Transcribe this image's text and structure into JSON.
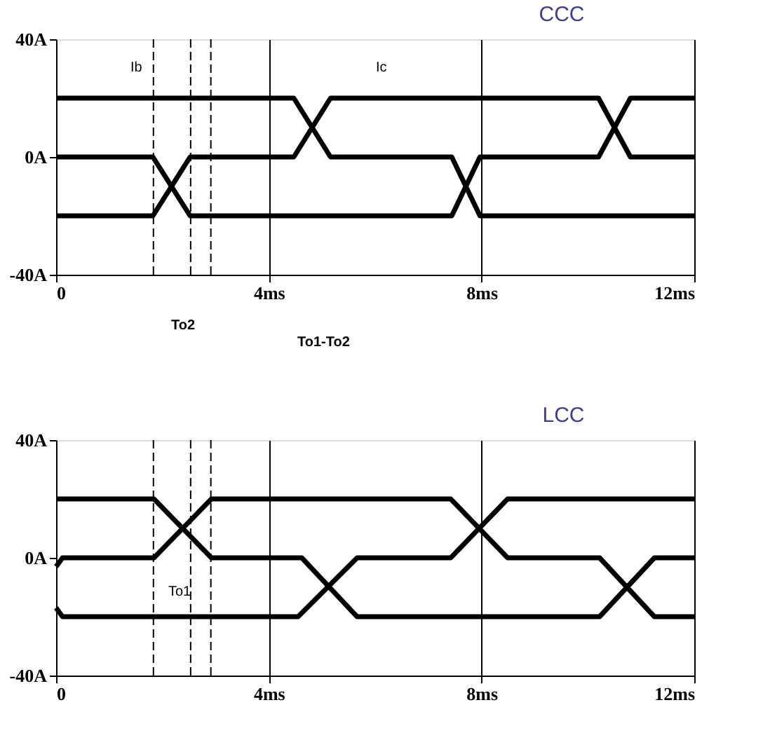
{
  "chart_data": [
    {
      "type": "line",
      "title": "CCC",
      "xlim": [
        0,
        12
      ],
      "ylim": [
        -40,
        40
      ],
      "xticks": [
        0,
        {
          "value": 4,
          "label": "4ms"
        },
        {
          "value": 8,
          "label": "8ms"
        },
        {
          "value": 12,
          "label": "12ms"
        }
      ],
      "yticks": [
        {
          "value": -40,
          "label": "-40A"
        },
        {
          "value": 0,
          "label": "0A"
        },
        {
          "value": 40,
          "label": "40A"
        }
      ],
      "grid": "x",
      "line_style": "solid",
      "series": [
        {
          "color": "#000000",
          "x": [
            0,
            4.47,
            5.16,
            7.44,
            7.97,
            12
          ],
          "values": [
            20,
            20,
            0,
            0,
            -20,
            -20
          ]
        },
        {
          "color": "#000000",
          "x": [
            0,
            1.82,
            2.52,
            7.44,
            7.97,
            10.2,
            10.8,
            12
          ],
          "values": [
            0,
            0,
            -20,
            -20,
            0,
            0,
            20,
            20
          ]
        },
        {
          "color": "#000000",
          "x": [
            0,
            1.82,
            2.52,
            4.47,
            5.16,
            10.2,
            10.8,
            12
          ],
          "values": [
            -20,
            -20,
            0,
            0,
            20,
            20,
            0,
            0
          ]
        }
      ],
      "ref_lines": [
        {
          "axis": "x",
          "value": 1.83,
          "line_style": "dashed",
          "color": "#000000"
        },
        {
          "axis": "x",
          "value": 2.53,
          "line_style": "dashed",
          "color": "#000000"
        },
        {
          "axis": "x",
          "value": 2.91,
          "line_style": "dashed",
          "color": "#000000"
        }
      ],
      "annotations": [
        "Ib",
        "Ic",
        "To2",
        "To1-To2"
      ]
    },
    {
      "type": "line",
      "title": "LCC",
      "xlim": [
        0,
        12
      ],
      "ylim": [
        -40,
        40
      ],
      "xticks": [
        0,
        {
          "value": 4,
          "label": "4ms"
        },
        {
          "value": 8,
          "label": "8ms"
        },
        {
          "value": 12,
          "label": "12ms"
        }
      ],
      "yticks": [
        {
          "value": -40,
          "label": "-40A"
        },
        {
          "value": 0,
          "label": "0A"
        },
        {
          "value": 40,
          "label": "40A"
        }
      ],
      "grid": "x",
      "line_style": "solid",
      "series": [
        {
          "color": "#000000",
          "x": [
            0,
            1.84,
            2.92,
            4.62,
            5.66,
            10.22,
            11.25,
            12
          ],
          "values": [
            20,
            20,
            0,
            0,
            -20,
            -20,
            0,
            0
          ]
        },
        {
          "color": "#000000",
          "x": [
            0,
            0.12,
            1.84,
            2.92,
            7.42,
            8.49,
            10.22,
            11.25,
            12
          ],
          "values": [
            -3,
            0,
            0,
            20,
            20,
            0,
            0,
            -20,
            -20
          ]
        },
        {
          "color": "#000000",
          "x": [
            0,
            0.12,
            4.55,
            5.66,
            7.42,
            8.49,
            12
          ],
          "values": [
            -17,
            -20,
            -20,
            0,
            0,
            20,
            20
          ]
        }
      ],
      "ref_lines": [
        {
          "axis": "x",
          "value": 1.83,
          "line_style": "dashed",
          "color": "#000000"
        },
        {
          "axis": "x",
          "value": 2.53,
          "line_style": "dashed",
          "color": "#000000"
        },
        {
          "axis": "x",
          "value": 2.91,
          "line_style": "dashed",
          "color": "#000000"
        }
      ],
      "annotations": [
        "To1"
      ]
    }
  ]
}
